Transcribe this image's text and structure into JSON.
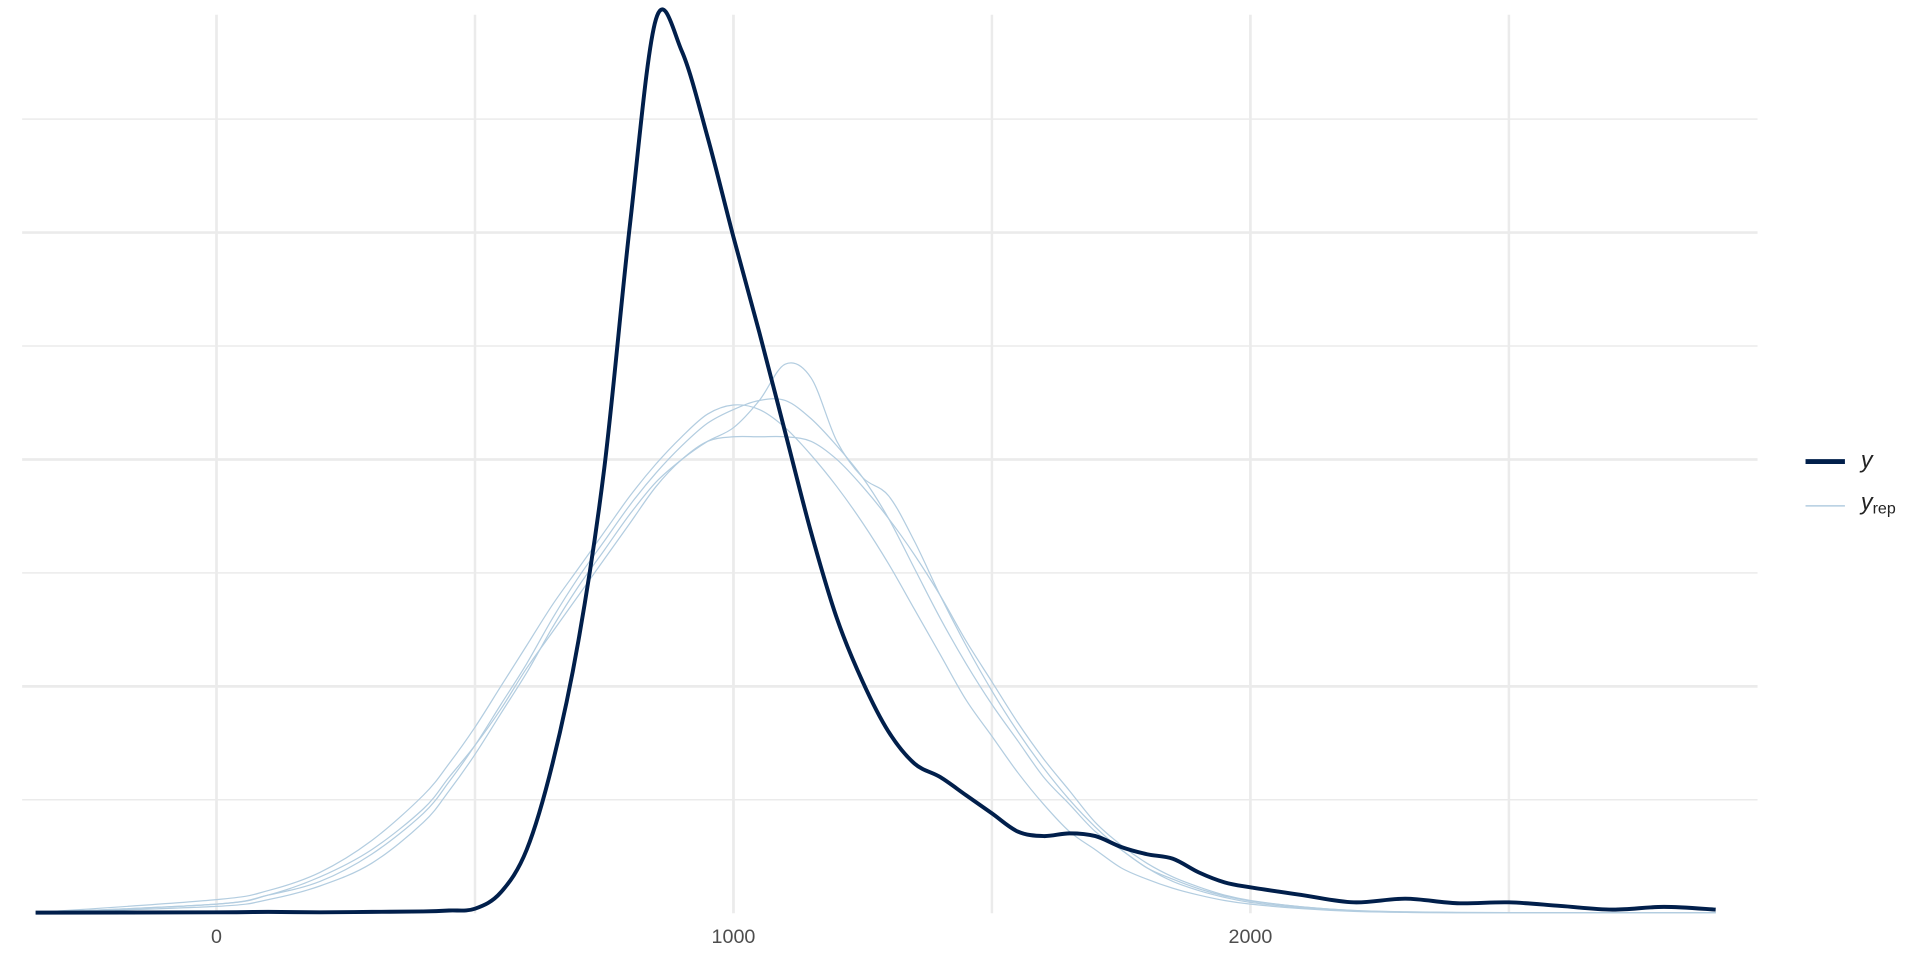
{
  "chart_data": {
    "type": "line",
    "x": [
      -350,
      0,
      100,
      200,
      300,
      400,
      450,
      500,
      550,
      600,
      650,
      700,
      750,
      800,
      850,
      900,
      950,
      1000,
      1050,
      1100,
      1150,
      1200,
      1250,
      1300,
      1350,
      1400,
      1450,
      1500,
      1550,
      1600,
      1650,
      1700,
      1750,
      1800,
      1850,
      1900,
      1950,
      2000,
      2100,
      2200,
      2300,
      2400,
      2500,
      2600,
      2700,
      2800,
      2900
    ],
    "xlim": [
      -376,
      2981
    ],
    "xticks": [
      0,
      1000,
      2000
    ],
    "xminorticks": [
      500,
      1500,
      2500
    ],
    "ylim": [
      0,
      0.00198
    ],
    "yticks": [
      0.0005,
      0.001,
      0.0015
    ],
    "yminorticks": [
      0.00025,
      0.00075,
      0.00125,
      0.00175
    ],
    "grid": true,
    "legend": "right",
    "series": [
      {
        "name": "y",
        "color": "#011f4b",
        "values": [
          0,
          2e-06,
          3e-06,
          2e-06,
          3e-06,
          4e-06,
          6e-06,
          1e-05,
          4.6e-05,
          0.00014,
          0.00033,
          0.0006,
          0.00098,
          0.00152,
          0.00197,
          0.0019,
          0.00171,
          0.00149,
          0.00128,
          0.00106,
          0.00084,
          0.00065,
          0.00051,
          0.0004,
          0.00033,
          0.0003,
          0.00026,
          0.00022,
          0.00018,
          0.00017,
          0.000176,
          0.00017,
          0.000146,
          0.00013,
          0.00012,
          9e-05,
          6.8e-05,
          5.7e-05,
          4e-05,
          2.4e-05,
          3.2e-05,
          2.2e-05,
          2.4e-05,
          1.6e-05,
          8e-06,
          1.4e-05,
          8e-06
        ]
      }
    ],
    "replicates": {
      "name": "y",
      "subscript": "rep",
      "color": "#b3cde0",
      "series": [
        [
          0,
          2e-05,
          4e-05,
          7e-05,
          0.00013,
          0.00022,
          0.00029,
          0.00037,
          0.00046,
          0.00055,
          0.00065,
          0.00074,
          0.00082,
          0.0009,
          0.00097,
          0.00103,
          0.00108,
          0.00111,
          0.00113,
          0.00113,
          0.00109,
          0.00103,
          0.00096,
          0.00087,
          0.00076,
          0.00065,
          0.00055,
          0.00046,
          0.00038,
          0.0003,
          0.00024,
          0.00018,
          0.00014,
          0.0001,
          7.5e-05,
          5.4e-05,
          3.8e-05,
          2.7e-05,
          1.4e-05,
          6e-06,
          3e-06,
          2e-06,
          1e-06,
          1e-06,
          0,
          0,
          0
        ],
        [
          0,
          3e-05,
          5e-05,
          9e-05,
          0.00016,
          0.00026,
          0.00033,
          0.00041,
          0.0005,
          0.00059,
          0.00068,
          0.00076,
          0.00084,
          0.00092,
          0.00099,
          0.00105,
          0.0011,
          0.00112,
          0.00111,
          0.00107,
          0.00101,
          0.00094,
          0.00086,
          0.00077,
          0.00067,
          0.00057,
          0.00047,
          0.00039,
          0.00031,
          0.00024,
          0.00018,
          0.00014,
          0.0001,
          7.5e-05,
          5.5e-05,
          4e-05,
          2.8e-05,
          2e-05,
          1e-05,
          4e-06,
          2e-06,
          1e-06,
          0,
          0,
          0,
          0,
          0
        ],
        [
          0,
          1.5e-05,
          3e-05,
          6e-05,
          0.00011,
          0.0002,
          0.00027,
          0.00035,
          0.00044,
          0.00053,
          0.00063,
          0.00072,
          0.0008,
          0.00088,
          0.00095,
          0.001,
          0.00104,
          0.00107,
          0.00113,
          0.00121,
          0.00118,
          0.00104,
          0.00096,
          0.00092,
          0.00082,
          0.0007,
          0.00059,
          0.00049,
          0.0004,
          0.00032,
          0.00025,
          0.00019,
          0.00014,
          0.0001,
          7e-05,
          5e-05,
          3.5e-05,
          2.4e-05,
          1.2e-05,
          5e-06,
          2e-06,
          1e-06,
          0,
          0,
          0,
          0,
          0
        ],
        [
          0,
          2e-05,
          4e-05,
          8e-05,
          0.00014,
          0.00023,
          0.0003,
          0.00037,
          0.00045,
          0.00054,
          0.00062,
          0.0007,
          0.00078,
          0.00086,
          0.00094,
          0.001,
          0.00104,
          0.00105,
          0.00105,
          0.00105,
          0.00104,
          0.001,
          0.00094,
          0.00087,
          0.00079,
          0.0007,
          0.0006,
          0.00051,
          0.00042,
          0.00034,
          0.00027,
          0.0002,
          0.00015,
          0.00011,
          8e-05,
          5.8e-05,
          4e-05,
          2.8e-05,
          1.4e-05,
          6e-06,
          3e-06,
          1e-06,
          0,
          0,
          0,
          0,
          0
        ]
      ]
    }
  }
}
